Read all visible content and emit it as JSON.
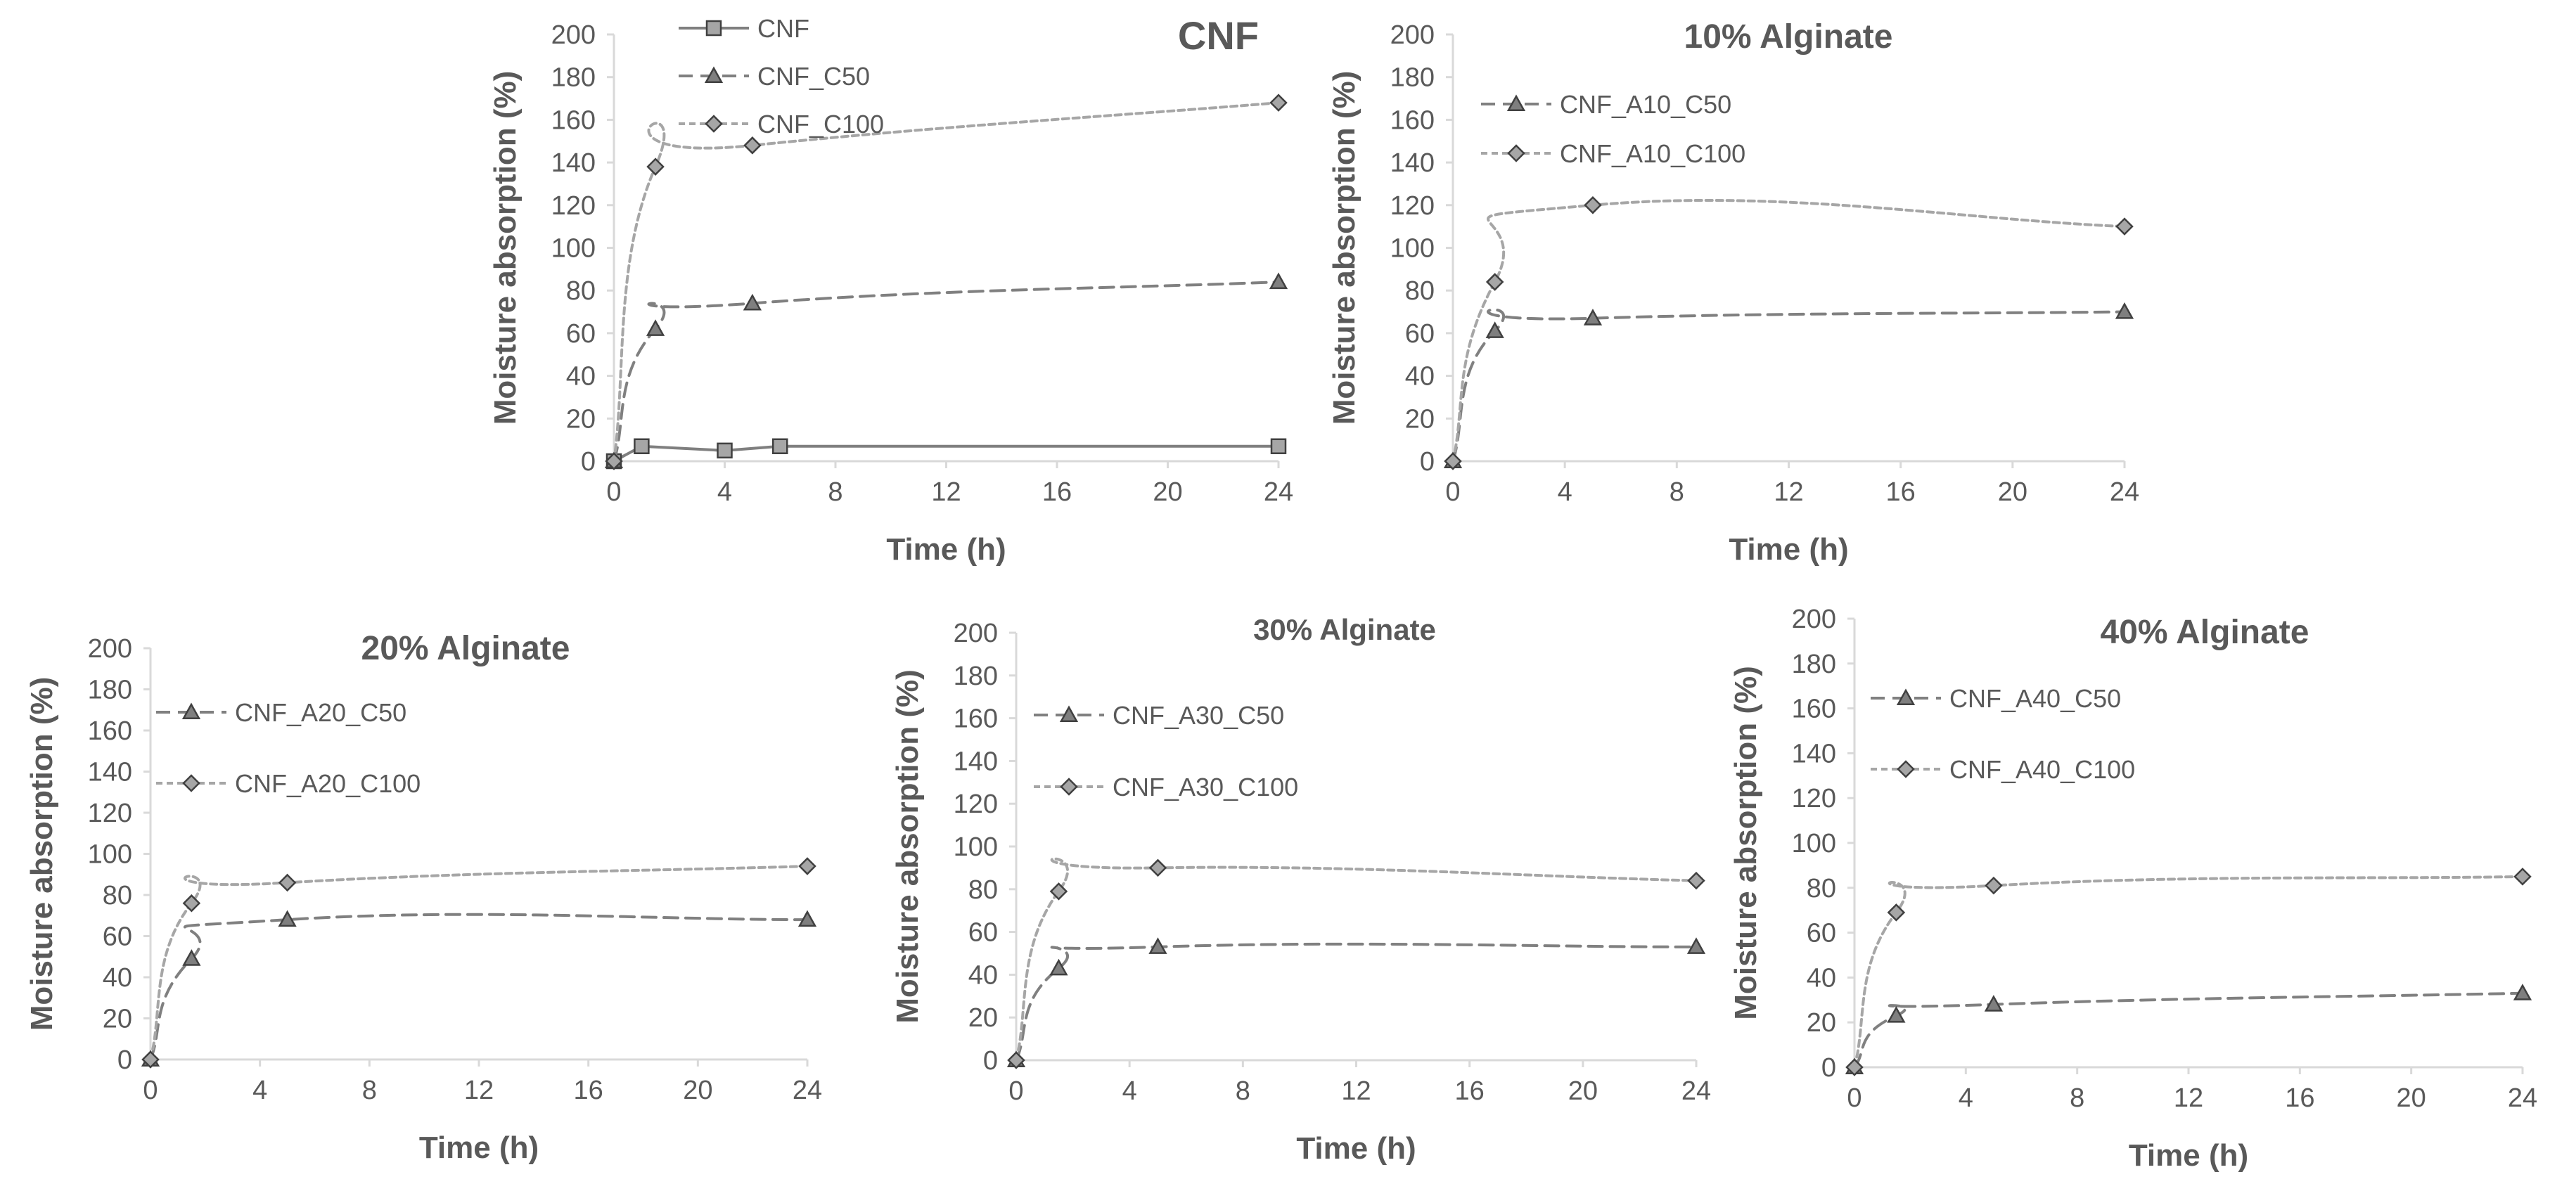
{
  "colors": {
    "text": "#595959",
    "axis": "#d9d9d9",
    "cnf_line": "#7f7f7f",
    "c50_line": "#808080",
    "c100_line": "#a6a6a6",
    "marker_fill_dark": "#7f7f7f",
    "marker_fill_light": "#a6a6a6"
  },
  "chart_data": [
    {
      "type": "line",
      "title": "CNF",
      "xlabel": "Time (h)",
      "ylabel": "Moisture absorption (%)",
      "xlim": [
        0,
        24
      ],
      "ylim": [
        0,
        200
      ],
      "xticks": [
        0,
        4,
        8,
        12,
        16,
        20,
        24
      ],
      "yticks": [
        0,
        20,
        40,
        60,
        80,
        100,
        120,
        140,
        160,
        180,
        200
      ],
      "legend_position": "top-left",
      "series": [
        {
          "name": "CNF",
          "x": [
            0,
            1,
            4,
            6,
            24
          ],
          "y": [
            0,
            7,
            5,
            7,
            7
          ],
          "marker": "square",
          "line": "solid"
        },
        {
          "name": "CNF_C50",
          "x": [
            0,
            1.5,
            5,
            24
          ],
          "y": [
            0,
            62,
            74,
            84
          ],
          "marker": "triangle",
          "line": "dashed"
        },
        {
          "name": "CNF_C100",
          "x": [
            0,
            1.5,
            5,
            24
          ],
          "y": [
            0,
            138,
            148,
            168
          ],
          "marker": "diamond",
          "line": "dashed-light"
        }
      ]
    },
    {
      "type": "line",
      "title": "10% Alginate",
      "xlabel": "Time (h)",
      "ylabel": "Moisture absorption (%)",
      "xlim": [
        0,
        24
      ],
      "ylim": [
        0,
        200
      ],
      "xticks": [
        0,
        4,
        8,
        12,
        16,
        20,
        24
      ],
      "yticks": [
        0,
        20,
        40,
        60,
        80,
        100,
        120,
        140,
        160,
        180,
        200
      ],
      "legend_position": "top-left",
      "series": [
        {
          "name": "CNF_A10_C50",
          "x": [
            0,
            1.5,
            5,
            24
          ],
          "y": [
            0,
            61,
            67,
            70
          ],
          "marker": "triangle",
          "line": "dashed"
        },
        {
          "name": "CNF_A10_C100",
          "x": [
            0,
            1.5,
            5,
            24
          ],
          "y": [
            0,
            84,
            120,
            110
          ],
          "marker": "diamond",
          "line": "dashed-light"
        }
      ]
    },
    {
      "type": "line",
      "title": "20% Alginate",
      "xlabel": "Time (h)",
      "ylabel": "Moisture absorption (%)",
      "xlim": [
        0,
        24
      ],
      "ylim": [
        0,
        200
      ],
      "xticks": [
        0,
        4,
        8,
        12,
        16,
        20,
        24
      ],
      "yticks": [
        0,
        20,
        40,
        60,
        80,
        100,
        120,
        140,
        160,
        180,
        200
      ],
      "legend_position": "top-left",
      "series": [
        {
          "name": "CNF_A20_C50",
          "x": [
            0,
            1.5,
            5,
            24
          ],
          "y": [
            0,
            49,
            68,
            68
          ],
          "marker": "triangle",
          "line": "dashed"
        },
        {
          "name": "CNF_A20_C100",
          "x": [
            0,
            1.5,
            5,
            24
          ],
          "y": [
            0,
            76,
            86,
            94
          ],
          "marker": "diamond",
          "line": "dashed-light"
        }
      ]
    },
    {
      "type": "line",
      "title": "30% Alginate",
      "xlabel": "Time (h)",
      "ylabel": "Moisture absorption (%)",
      "xlim": [
        0,
        24
      ],
      "ylim": [
        0,
        200
      ],
      "xticks": [
        0,
        4,
        8,
        12,
        16,
        20,
        24
      ],
      "yticks": [
        0,
        20,
        40,
        60,
        80,
        100,
        120,
        140,
        160,
        180,
        200
      ],
      "legend_position": "top-left",
      "series": [
        {
          "name": "CNF_A30_C50",
          "x": [
            0,
            1.5,
            5,
            24
          ],
          "y": [
            0,
            43,
            53,
            53
          ],
          "marker": "triangle",
          "line": "dashed"
        },
        {
          "name": "CNF_A30_C100",
          "x": [
            0,
            1.5,
            5,
            24
          ],
          "y": [
            0,
            79,
            90,
            84
          ],
          "marker": "diamond",
          "line": "dashed-light"
        }
      ]
    },
    {
      "type": "line",
      "title": "40% Alginate",
      "xlabel": "Time (h)",
      "ylabel": "Moisture absorption (%)",
      "xlim": [
        0,
        24
      ],
      "ylim": [
        0,
        200
      ],
      "xticks": [
        0,
        4,
        8,
        12,
        16,
        20,
        24
      ],
      "yticks": [
        0,
        20,
        40,
        60,
        80,
        100,
        120,
        140,
        160,
        180,
        200
      ],
      "legend_position": "top-left",
      "series": [
        {
          "name": "CNF_A40_C50",
          "x": [
            0,
            1.5,
            5,
            24
          ],
          "y": [
            0,
            23,
            28,
            33
          ],
          "marker": "triangle",
          "line": "dashed"
        },
        {
          "name": "CNF_A40_C100",
          "x": [
            0,
            1.5,
            5,
            24
          ],
          "y": [
            0,
            69,
            81,
            85
          ],
          "marker": "diamond",
          "line": "dashed-light"
        }
      ]
    }
  ]
}
